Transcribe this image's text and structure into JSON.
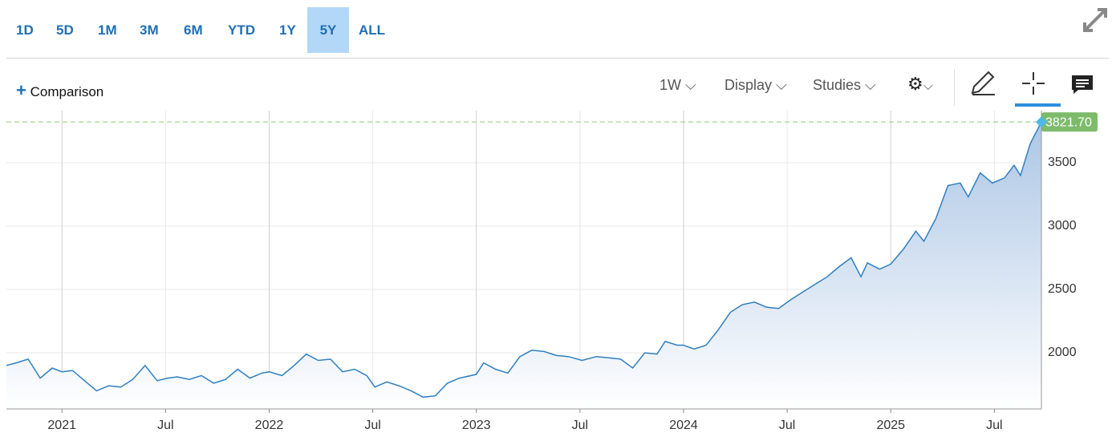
{
  "ranges": [
    "1D",
    "5D",
    "1M",
    "3M",
    "6M",
    "YTD",
    "1Y",
    "5Y",
    "ALL"
  ],
  "selected_range_index": 7,
  "toolbar": {
    "comparison": "Comparison",
    "interval": "1W",
    "display": "Display",
    "studies": "Studies"
  },
  "chart_data": {
    "type": "line",
    "area": true,
    "color": "#2f7fc1",
    "fill_color": "#a9c4e4",
    "x": [
      2020.732,
      2020.778,
      2020.837,
      2020.895,
      2020.953,
      2021.0,
      2021.051,
      2021.109,
      2021.167,
      2021.226,
      2021.284,
      2021.342,
      2021.401,
      2021.459,
      2021.51,
      2021.556,
      2021.615,
      2021.673,
      2021.732,
      2021.79,
      2021.848,
      2021.907,
      2021.965,
      2022.0,
      2022.062,
      2022.121,
      2022.179,
      2022.237,
      2022.296,
      2022.354,
      2022.412,
      2022.471,
      2022.51,
      2022.568,
      2022.626,
      2022.685,
      2022.743,
      2022.802,
      2022.86,
      2022.918,
      2023.0,
      2023.035,
      2023.093,
      2023.152,
      2023.21,
      2023.268,
      2023.327,
      2023.385,
      2023.444,
      2023.51,
      2023.58,
      2023.638,
      2023.696,
      2023.755,
      2023.813,
      2023.872,
      2023.911,
      2023.969,
      2024.0,
      2024.051,
      2024.109,
      2024.167,
      2024.226,
      2024.284,
      2024.342,
      2024.401,
      2024.459,
      2024.518,
      2024.576,
      2024.634,
      2024.693,
      2024.751,
      2024.809,
      2024.856,
      2024.887,
      2024.946,
      2025.0,
      2025.062,
      2025.121,
      2025.16,
      2025.218,
      2025.276,
      2025.335,
      2025.374,
      2025.432,
      2025.49,
      2025.549,
      2025.595,
      2025.626,
      2025.673,
      2025.727
    ],
    "values": [
      1900,
      1920,
      1950,
      1800,
      1880,
      1850,
      1860,
      1780,
      1700,
      1740,
      1730,
      1790,
      1900,
      1780,
      1800,
      1810,
      1790,
      1820,
      1760,
      1790,
      1870,
      1800,
      1840,
      1850,
      1820,
      1900,
      1990,
      1940,
      1950,
      1850,
      1870,
      1820,
      1730,
      1770,
      1740,
      1700,
      1650,
      1660,
      1760,
      1800,
      1830,
      1920,
      1870,
      1840,
      1970,
      2020,
      2010,
      1980,
      1970,
      1940,
      1970,
      1960,
      1950,
      1880,
      2000,
      1990,
      2090,
      2060,
      2060,
      2030,
      2060,
      2180,
      2320,
      2380,
      2400,
      2360,
      2350,
      2420,
      2480,
      2540,
      2600,
      2680,
      2750,
      2600,
      2710,
      2660,
      2700,
      2820,
      2960,
      2880,
      3060,
      3320,
      3340,
      3230,
      3420,
      3340,
      3380,
      3480,
      3400,
      3650,
      3821.7
    ],
    "xlim": [
      2020.732,
      2025.727
    ],
    "ylim": [
      1557,
      3911
    ],
    "xticks": [
      {
        "value": 2021,
        "label": "2021"
      },
      {
        "value": 2021.5,
        "label": "Jul"
      },
      {
        "value": 2022,
        "label": "2022"
      },
      {
        "value": 2022.5,
        "label": "Jul"
      },
      {
        "value": 2023,
        "label": "2023"
      },
      {
        "value": 2023.5,
        "label": "Jul"
      },
      {
        "value": 2024,
        "label": "2024"
      },
      {
        "value": 2024.5,
        "label": "Jul"
      },
      {
        "value": 2025,
        "label": "2025"
      },
      {
        "value": 2025.5,
        "label": "Jul"
      }
    ],
    "yticks": [
      2000,
      2500,
      3000,
      3500
    ],
    "last_price": {
      "value": 3821.7,
      "label": "3821.70"
    },
    "grid": true
  }
}
